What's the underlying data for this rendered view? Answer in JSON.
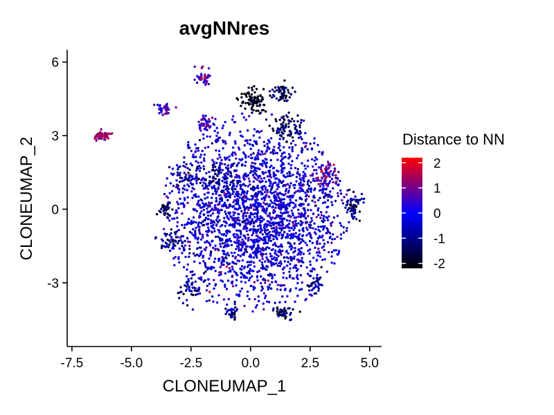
{
  "chart_data": {
    "type": "scatter",
    "title": "avgNNres",
    "xlabel": "CLONEUMAP_1",
    "ylabel": "CLONEUMAP_2",
    "xlim": [
      -7.7,
      5.5
    ],
    "ylim": [
      -5.6,
      6.5
    ],
    "x_ticks": [
      -7.5,
      -5.0,
      -2.5,
      0.0,
      2.5,
      5.0
    ],
    "x_tick_labels": [
      "-7.5",
      "-5.0",
      "-2.5",
      "0.0",
      "2.5",
      "5.0"
    ],
    "y_ticks": [
      -3,
      0,
      3,
      6
    ],
    "y_tick_labels": [
      "-3",
      "0",
      "3",
      "6"
    ],
    "grid": false,
    "legend": {
      "title": "Distance to NN",
      "placement": "right",
      "type": "colorbar",
      "range": [
        -2.2,
        2.2
      ],
      "ticks": [
        2,
        1,
        0,
        -1,
        -2
      ],
      "tick_labels": [
        "2",
        "1",
        "0",
        "-1",
        "-2"
      ],
      "colors": [
        "#000000",
        "#0000ff",
        "#ff0000"
      ]
    },
    "clusters": [
      {
        "x": 0.2,
        "y": -0.2,
        "sx": 1.9,
        "sy": 1.8,
        "n": 2400,
        "mean": -0.15,
        "sd": 0.55
      },
      {
        "x": 0.1,
        "y": 4.4,
        "sx": 0.25,
        "sy": 0.25,
        "n": 90,
        "mean": -2.0,
        "sd": 0.2
      },
      {
        "x": 1.3,
        "y": 4.7,
        "sx": 0.25,
        "sy": 0.2,
        "n": 60,
        "mean": -1.5,
        "sd": 0.4
      },
      {
        "x": 1.6,
        "y": 3.4,
        "sx": 0.35,
        "sy": 0.3,
        "n": 70,
        "mean": -1.4,
        "sd": 0.4
      },
      {
        "x": 3.2,
        "y": 1.4,
        "sx": 0.25,
        "sy": 0.3,
        "n": 60,
        "mean": 0.8,
        "sd": 0.6
      },
      {
        "x": 4.3,
        "y": 0.1,
        "sx": 0.2,
        "sy": 0.3,
        "n": 60,
        "mean": -1.0,
        "sd": 0.5
      },
      {
        "x": -3.6,
        "y": 0.0,
        "sx": 0.15,
        "sy": 0.15,
        "n": 30,
        "mean": -1.6,
        "sd": 0.4
      },
      {
        "x": -3.2,
        "y": -1.3,
        "sx": 0.3,
        "sy": 0.25,
        "n": 50,
        "mean": -1.0,
        "sd": 0.5
      },
      {
        "x": -2.6,
        "y": -3.3,
        "sx": 0.25,
        "sy": 0.25,
        "n": 40,
        "mean": -0.9,
        "sd": 0.5
      },
      {
        "x": -2.6,
        "y": 1.3,
        "sx": 0.3,
        "sy": 0.3,
        "n": 40,
        "mean": -1.0,
        "sd": 0.5
      },
      {
        "x": -1.3,
        "y": 1.3,
        "sx": 0.25,
        "sy": 0.25,
        "n": 40,
        "mean": -1.2,
        "sd": 0.4
      },
      {
        "x": 1.4,
        "y": -4.2,
        "sx": 0.2,
        "sy": 0.15,
        "n": 40,
        "mean": -1.5,
        "sd": 0.5
      },
      {
        "x": -0.8,
        "y": -4.2,
        "sx": 0.15,
        "sy": 0.15,
        "n": 30,
        "mean": -1.1,
        "sd": 0.5
      },
      {
        "x": 2.7,
        "y": -3.1,
        "sx": 0.15,
        "sy": 0.2,
        "n": 30,
        "mean": -1.0,
        "sd": 0.5
      },
      {
        "x": -2.0,
        "y": 5.4,
        "sx": 0.15,
        "sy": 0.15,
        "n": 40,
        "mean": 0.8,
        "sd": 0.5
      },
      {
        "x": -1.9,
        "y": 3.5,
        "sx": 0.18,
        "sy": 0.15,
        "n": 45,
        "mean": 0.6,
        "sd": 0.6
      },
      {
        "x": -3.6,
        "y": 4.1,
        "sx": 0.15,
        "sy": 0.12,
        "n": 35,
        "mean": 0.5,
        "sd": 0.5
      },
      {
        "x": -6.2,
        "y": 3.0,
        "sx": 0.15,
        "sy": 0.09,
        "n": 55,
        "mean": 1.3,
        "sd": 0.3
      }
    ]
  }
}
